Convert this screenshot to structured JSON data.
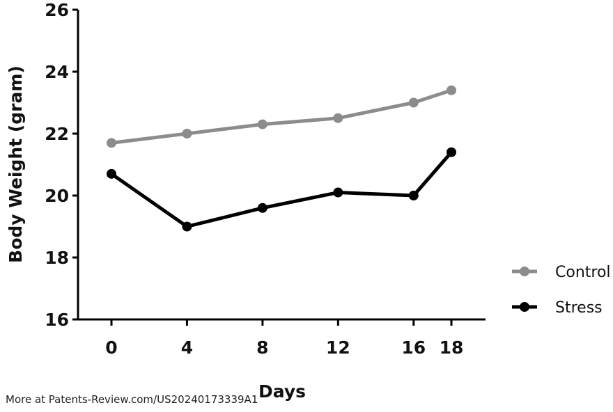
{
  "chart_data": {
    "type": "line",
    "xlabel": "Days",
    "ylabel": "Body Weight (gram)",
    "x": [
      0,
      4,
      8,
      12,
      16,
      18
    ],
    "x_tick_labels": [
      "0",
      "4",
      "8",
      "12",
      "16",
      "18"
    ],
    "ylim": [
      16,
      26
    ],
    "y_ticks": [
      16,
      18,
      20,
      22,
      24,
      26
    ],
    "grid": false,
    "legend_position": "right",
    "series": [
      {
        "name": "Control",
        "color": "#8c8c8c",
        "values": [
          21.7,
          22.0,
          22.3,
          22.5,
          23.0,
          23.4
        ]
      },
      {
        "name": "Stress",
        "color": "#000000",
        "values": [
          20.7,
          19.0,
          19.6,
          20.1,
          20.0,
          21.4
        ]
      }
    ]
  },
  "footer": {
    "text": "More at Patents-Review.com/US20240173339A1"
  }
}
